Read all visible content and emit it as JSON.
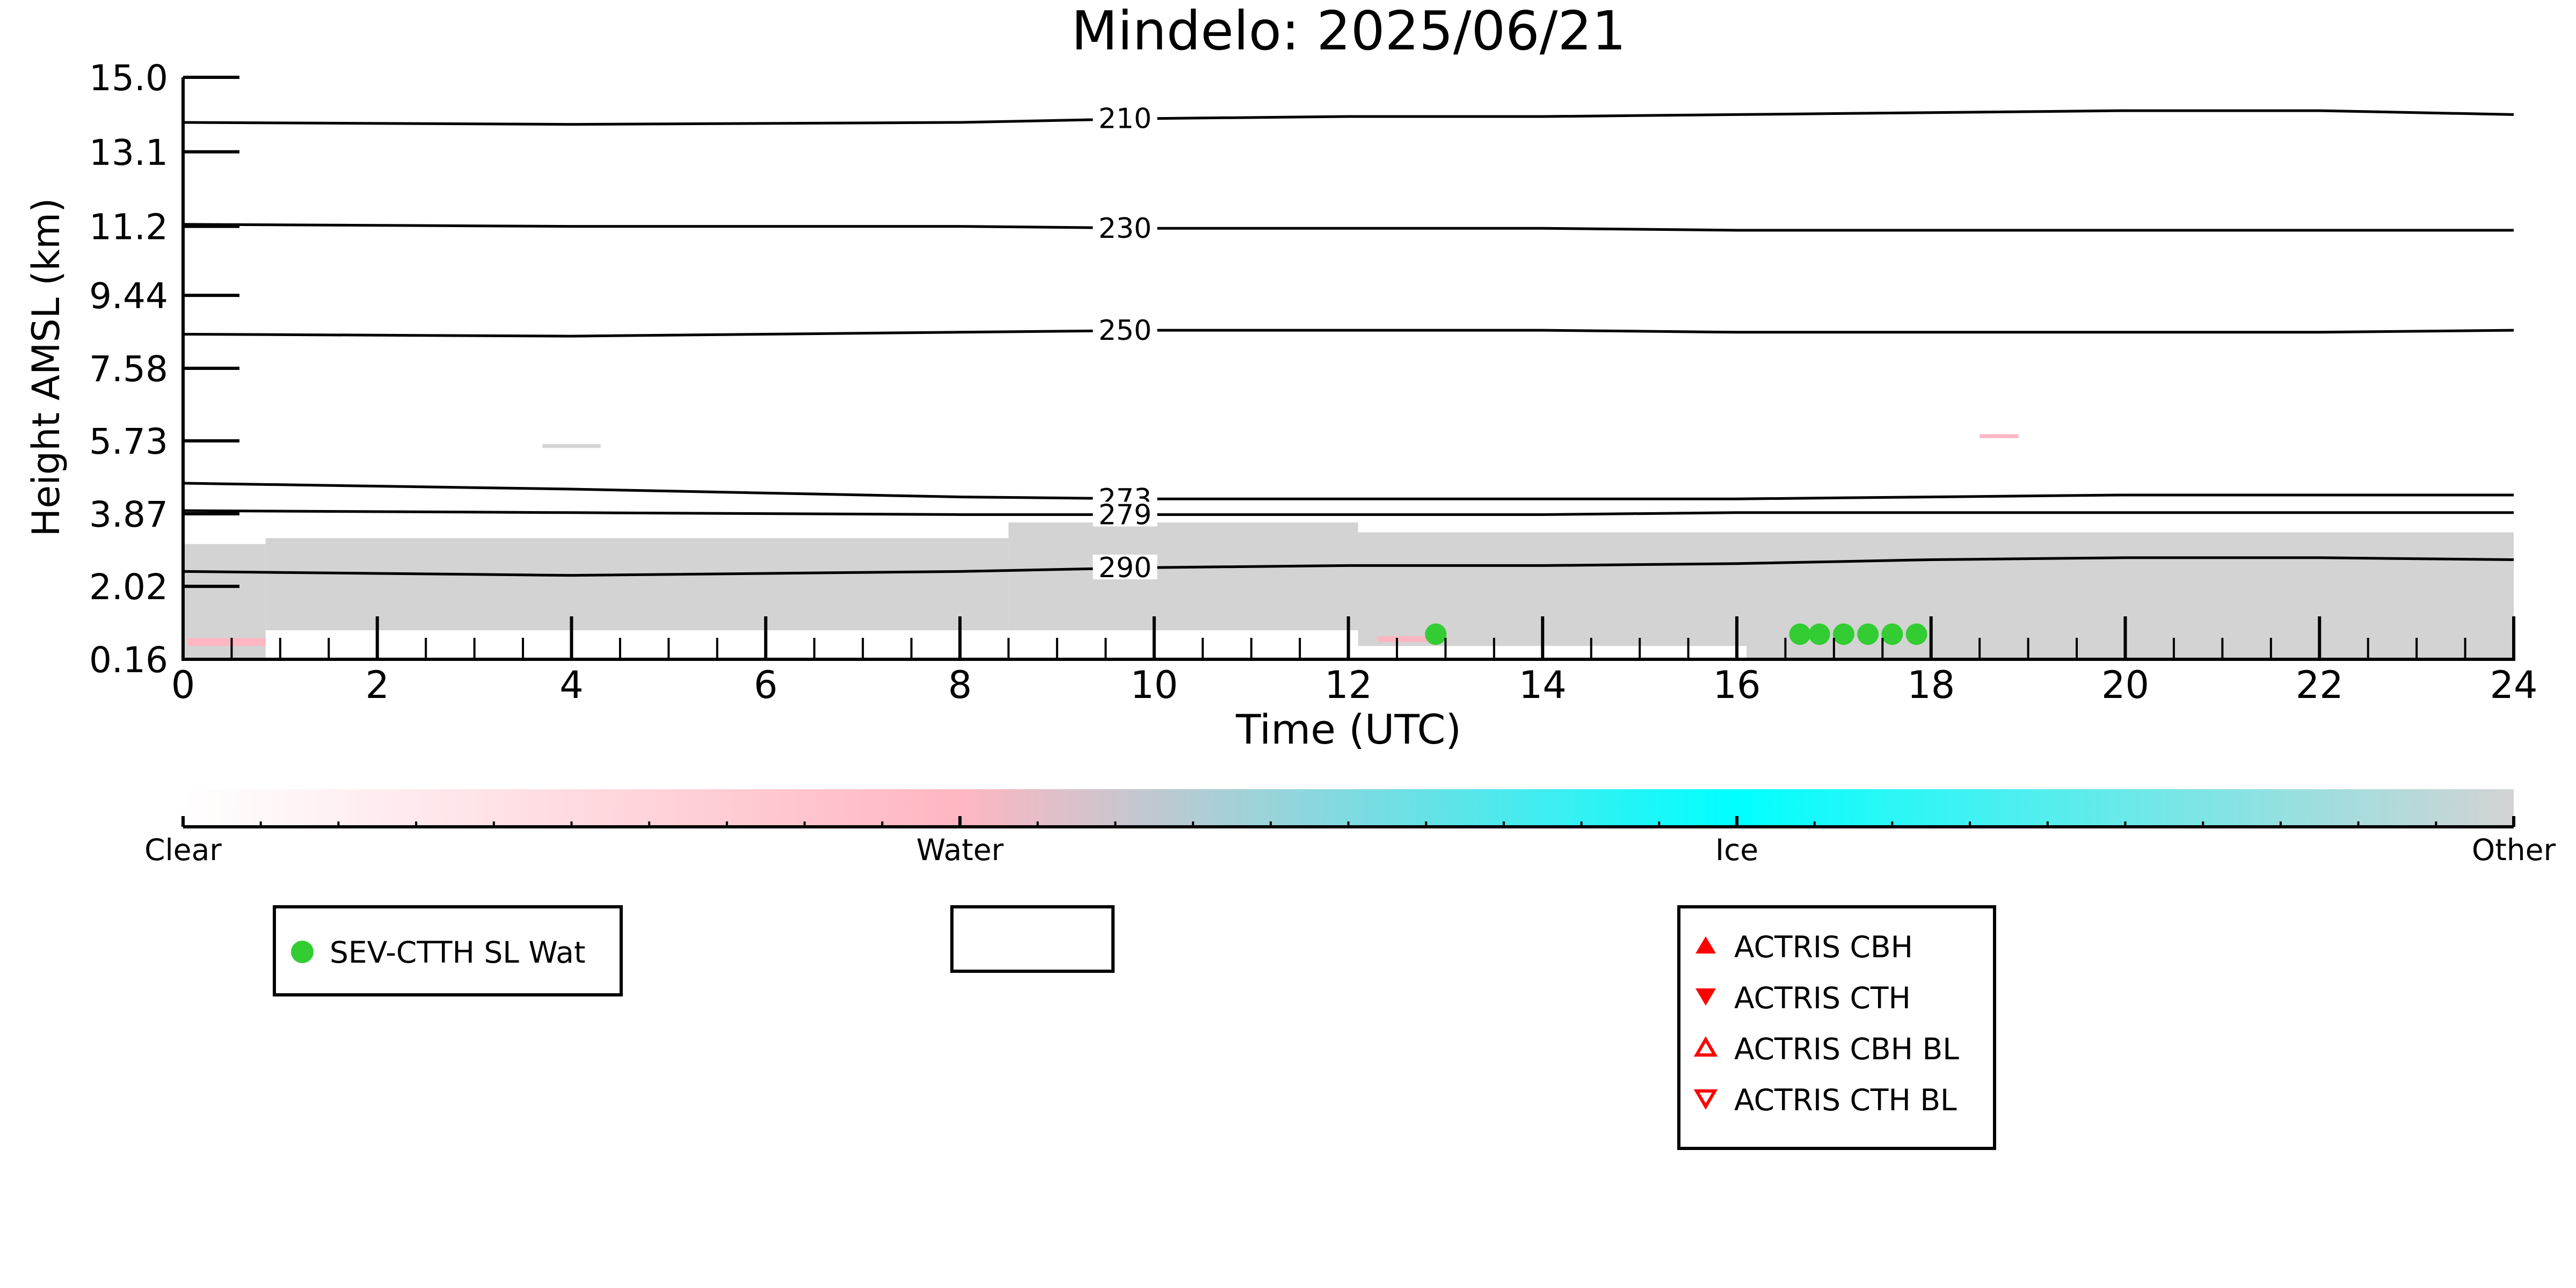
{
  "colors": {
    "water_dot": "#33cc33",
    "actris": "#ff0000",
    "other_gray": "#d3d3d3",
    "water_pink": "#ffb6c1",
    "ice_cyan": "#00ffff"
  },
  "chart_data": {
    "type": "heatmap",
    "title": "Mindelo: 2025/06/21",
    "xlabel": "Time (UTC)",
    "ylabel": "Height AMSL (km)",
    "xlim": [
      0,
      24
    ],
    "ylim": [
      0.16,
      15.0
    ],
    "xticks": [
      "0",
      "2",
      "4",
      "6",
      "8",
      "10",
      "12",
      "14",
      "16",
      "18",
      "20",
      "22",
      "24"
    ],
    "yticks": [
      "0.16",
      "2.02",
      "3.87",
      "5.73",
      "7.58",
      "9.44",
      "11.2",
      "13.1",
      "15.0"
    ],
    "ytick_values": [
      0.16,
      2.02,
      3.87,
      5.73,
      7.58,
      9.44,
      11.2,
      13.1,
      15.0
    ],
    "grid": false,
    "classes": [
      "Clear",
      "Water",
      "Ice",
      "Other"
    ],
    "isotherms": [
      {
        "label": "210",
        "x": [
          0,
          4,
          8,
          10,
          12,
          14,
          16,
          18,
          20,
          22,
          24
        ],
        "y": [
          13.85,
          13.8,
          13.85,
          13.95,
          14.0,
          14.0,
          14.05,
          14.1,
          14.15,
          14.15,
          14.05
        ]
      },
      {
        "label": "230",
        "x": [
          0,
          4,
          8,
          10,
          12,
          14,
          16,
          18,
          20,
          22,
          24
        ],
        "y": [
          11.25,
          11.2,
          11.2,
          11.15,
          11.15,
          11.15,
          11.1,
          11.1,
          11.1,
          11.1,
          11.1
        ]
      },
      {
        "label": "250",
        "x": [
          0,
          4,
          8,
          10,
          12,
          14,
          16,
          18,
          20,
          22,
          24
        ],
        "y": [
          8.45,
          8.4,
          8.5,
          8.55,
          8.55,
          8.55,
          8.5,
          8.5,
          8.5,
          8.5,
          8.55
        ]
      },
      {
        "label": "273",
        "x": [
          0,
          4,
          8,
          10,
          12,
          14,
          16,
          18,
          20,
          22,
          24
        ],
        "y": [
          4.65,
          4.5,
          4.3,
          4.25,
          4.25,
          4.25,
          4.25,
          4.3,
          4.35,
          4.35,
          4.35
        ]
      },
      {
        "label": "279",
        "x": [
          0,
          4,
          8,
          10,
          12,
          14,
          16,
          18,
          20,
          22,
          24
        ],
        "y": [
          3.95,
          3.9,
          3.85,
          3.85,
          3.85,
          3.85,
          3.9,
          3.9,
          3.9,
          3.9,
          3.9
        ]
      },
      {
        "label": "290",
        "x": [
          0,
          4,
          8,
          10,
          12,
          14,
          16,
          18,
          20,
          22,
          24
        ],
        "y": [
          2.4,
          2.3,
          2.4,
          2.5,
          2.55,
          2.55,
          2.6,
          2.7,
          2.75,
          2.75,
          2.7
        ]
      }
    ],
    "cloud_regions": [
      {
        "class": "Other",
        "x0": 0.0,
        "x1": 0.85,
        "y0": 0.16,
        "y1": 3.1
      },
      {
        "class": "Other",
        "x0": 0.85,
        "x1": 8.5,
        "y0": 0.9,
        "y1": 3.25
      },
      {
        "class": "Other",
        "x0": 8.5,
        "x1": 12.1,
        "y0": 0.9,
        "y1": 3.65
      },
      {
        "class": "Other",
        "x0": 12.1,
        "x1": 16.1,
        "y0": 0.5,
        "y1": 3.4
      },
      {
        "class": "Other",
        "x0": 16.1,
        "x1": 24.0,
        "y0": 0.2,
        "y1": 3.4
      },
      {
        "class": "Other",
        "x0": 3.7,
        "x1": 4.3,
        "y0": 5.55,
        "y1": 5.65
      },
      {
        "class": "Water",
        "x0": 18.5,
        "x1": 18.9,
        "y0": 5.8,
        "y1": 5.9
      },
      {
        "class": "Water",
        "x0": 0.05,
        "x1": 0.85,
        "y0": 0.5,
        "y1": 0.7
      },
      {
        "class": "Water",
        "x0": 12.3,
        "x1": 12.9,
        "y0": 0.6,
        "y1": 0.75
      }
    ],
    "series": [
      {
        "name": "SEV-CTTH SL Wat",
        "x": [
          12.9,
          16.65,
          16.85,
          17.1,
          17.35,
          17.6,
          17.85
        ],
        "y": [
          0.8,
          0.8,
          0.8,
          0.8,
          0.8,
          0.8,
          0.8
        ]
      }
    ],
    "legend": {
      "left": [
        "SEV-CTTH SL Wat"
      ],
      "middle": [],
      "right": [
        "ACTRIS CBH",
        "ACTRIS CTH",
        "ACTRIS CBH BL",
        "ACTRIS CTH BL"
      ]
    }
  }
}
